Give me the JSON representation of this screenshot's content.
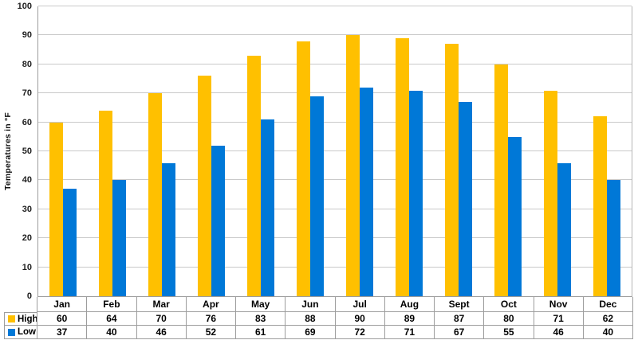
{
  "chart_data": {
    "type": "bar",
    "title": "",
    "xlabel": "",
    "ylabel": "Temperatures in °F",
    "ylim": [
      0,
      100
    ],
    "yticks": [
      0,
      10,
      20,
      30,
      40,
      50,
      60,
      70,
      80,
      90,
      100
    ],
    "grid": true,
    "legend_position": "bottom-left data-table keys",
    "categories": [
      "Jan",
      "Feb",
      "Mar",
      "Apr",
      "May",
      "Jun",
      "Jul",
      "Aug",
      "Sept",
      "Oct",
      "Nov",
      "Dec"
    ],
    "series": [
      {
        "name": "High",
        "color": "#FFC000",
        "values": [
          60,
          64,
          70,
          76,
          83,
          88,
          90,
          89,
          87,
          80,
          71,
          62
        ]
      },
      {
        "name": "Low",
        "color": "#0078D7",
        "values": [
          37,
          40,
          46,
          52,
          61,
          69,
          72,
          71,
          67,
          55,
          46,
          40
        ]
      }
    ]
  },
  "colors": {
    "gridline": "#c9c9c9",
    "axis_border": "#9d9d9d",
    "background": "#ffffff",
    "high_bar": "#FFC000",
    "low_bar": "#0078D7"
  }
}
